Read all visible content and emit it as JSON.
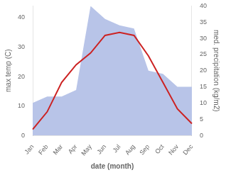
{
  "chart_data": {
    "type": "line",
    "categories": [
      "Jan",
      "Feb",
      "Mar",
      "Apr",
      "May",
      "Jun",
      "Jul",
      "Aug",
      "Sep",
      "Oct",
      "Nov",
      "Dec"
    ],
    "xlabel": "date (month)",
    "ylabel": "max temp (C)",
    "y2label": "med. precipitation (kg/m2)",
    "series": [
      {
        "type": "area",
        "axis": "y2",
        "color": "#b8c4e8",
        "values": [
          10,
          12,
          12,
          14,
          40,
          36,
          34,
          33,
          20,
          19,
          15,
          15
        ]
      },
      {
        "type": "line",
        "color": "#cc2222",
        "values": [
          2,
          8,
          18,
          24,
          28,
          34,
          35,
          34,
          27,
          18,
          9,
          4
        ]
      }
    ],
    "ylim": [
      0,
      44
    ],
    "yticks": [
      0,
      10,
      20,
      30,
      40
    ],
    "y2lim": [
      0,
      40
    ],
    "y2ticks": [
      0,
      5,
      10,
      15,
      20,
      25,
      30,
      35,
      40
    ],
    "grid": false
  }
}
